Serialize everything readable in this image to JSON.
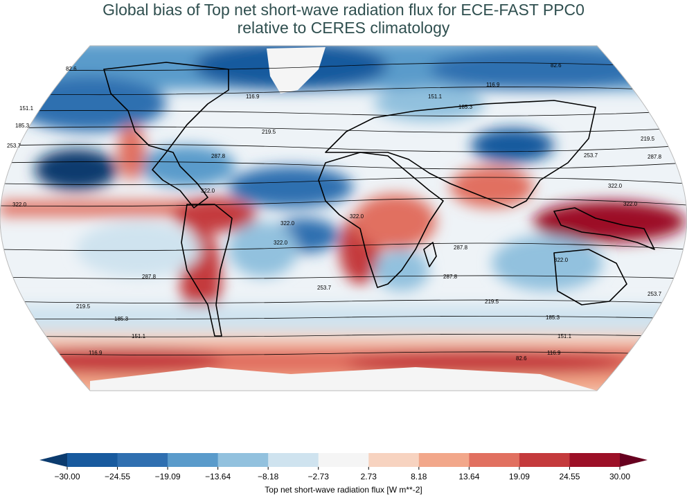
{
  "title": {
    "line1": "Global bias of Top net short-wave radiation flux for ECE-FAST PPC0",
    "line2": "relative to CERES climatology"
  },
  "colorbar": {
    "label": "Top net short-wave radiation flux [W m**-2]",
    "ticks": [
      "−30.00",
      "−24.55",
      "−19.09",
      "−13.64",
      "−8.18",
      "−2.73",
      "2.73",
      "8.18",
      "13.64",
      "19.09",
      "24.55",
      "30.00"
    ],
    "tick_values": [
      -30.0,
      -24.55,
      -19.09,
      -13.64,
      -8.18,
      -2.73,
      2.73,
      8.18,
      13.64,
      19.09,
      24.55,
      30.0
    ],
    "colors": [
      "#185a9e",
      "#2f6fb0",
      "#5a9bcb",
      "#92c1de",
      "#cfe3ef",
      "#f5f5f5",
      "#f7d3c0",
      "#f2a78a",
      "#e17060",
      "#c43a3c",
      "#9c1027"
    ],
    "extend_min_color": "#0b3b6e",
    "extend_max_color": "#67001f"
  },
  "map": {
    "projection": "robinson",
    "background_color": "#f4f4f4",
    "contour_labels_left": [
      "82.6",
      "151.1",
      "185.3",
      "253.7",
      "287.8",
      "322.0",
      "287.8",
      "219.5",
      "185.3",
      "151.1",
      "116.9"
    ],
    "contour_labels_right": [
      "82.6",
      "116.9",
      "151.1",
      "185.3",
      "219.5",
      "253.7",
      "287.8",
      "322.0",
      "322.0",
      "253.7",
      "219.5",
      "185.3",
      "151.1",
      "116.9",
      "82.6"
    ],
    "contour_labels_interior": [
      "116.9",
      "219.5",
      "322.0",
      "322.0",
      "322.0",
      "322.0",
      "253.7",
      "287.8",
      "287.8",
      "322.0"
    ]
  }
}
